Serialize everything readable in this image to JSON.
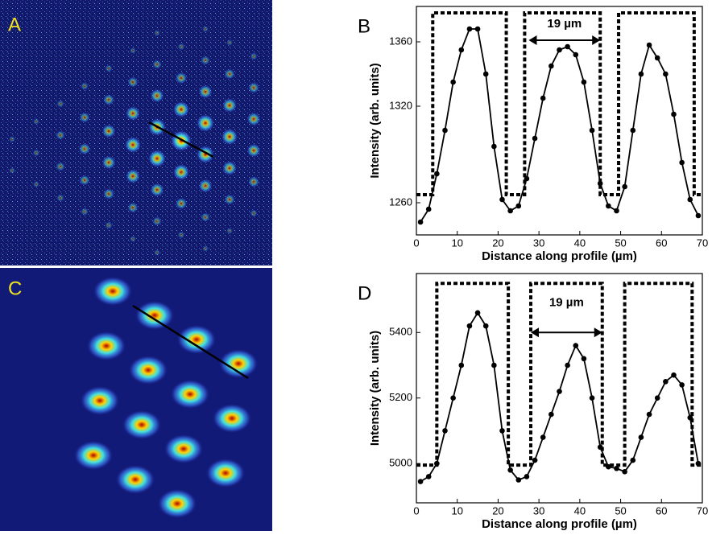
{
  "images": [
    {
      "panel": "A"
    },
    {
      "panel": "C"
    }
  ],
  "chart_data": [
    {
      "type": "line",
      "panel": "B",
      "xlabel": "Distance along profile (µm)",
      "ylabel": "Intensity (arb. units)",
      "annotation": "19 µm",
      "xlim": [
        0,
        70
      ],
      "xticks": [
        0,
        10,
        20,
        30,
        40,
        50,
        60,
        70
      ],
      "ylim": [
        1240,
        1382
      ],
      "yticks": [
        1260,
        1320,
        1360
      ],
      "series": [
        {
          "color": "#000000",
          "markers": true,
          "x": [
            1,
            3,
            5,
            7,
            9,
            11,
            13,
            15,
            17,
            19,
            21,
            23,
            25,
            27,
            29,
            31,
            33,
            35,
            37,
            39,
            41,
            43,
            45,
            47,
            49,
            51,
            53,
            55,
            57,
            59,
            61,
            63,
            65,
            67,
            69
          ],
          "values": [
            1248,
            1256,
            1278,
            1305,
            1335,
            1355,
            1368,
            1368,
            1340,
            1295,
            1262,
            1255,
            1258,
            1275,
            1300,
            1325,
            1345,
            1355,
            1357,
            1352,
            1335,
            1305,
            1272,
            1258,
            1255,
            1270,
            1305,
            1340,
            1358,
            1350,
            1340,
            1315,
            1285,
            1262,
            1252
          ]
        },
        {
          "color": "#000000",
          "dashed": true,
          "x": [
            0,
            4,
            4,
            22,
            22,
            26.5,
            26.5,
            45,
            45,
            49.5,
            49.5,
            68,
            68,
            70
          ],
          "values": [
            1265,
            1265,
            1378,
            1378,
            1265,
            1265,
            1378,
            1378,
            1265,
            1265,
            1378,
            1378,
            1265,
            1265
          ]
        }
      ]
    },
    {
      "type": "line",
      "panel": "D",
      "xlabel": "Distance along profile (µm)",
      "ylabel": "Intensity (arb. units)",
      "annotation": "19 µm",
      "xlim": [
        0,
        70
      ],
      "xticks": [
        0,
        10,
        20,
        30,
        40,
        50,
        60,
        70
      ],
      "ylim": [
        4880,
        5580
      ],
      "yticks": [
        5000,
        5200,
        5400
      ],
      "series": [
        {
          "color": "#000000",
          "markers": true,
          "x": [
            1,
            3,
            5,
            7,
            9,
            11,
            13,
            15,
            17,
            19,
            21,
            23,
            25,
            27,
            29,
            31,
            33,
            35,
            37,
            39,
            41,
            43,
            45,
            47,
            49,
            51,
            53,
            55,
            57,
            59,
            61,
            63,
            65,
            67,
            69
          ],
          "values": [
            4945,
            4960,
            5000,
            5100,
            5200,
            5300,
            5420,
            5460,
            5420,
            5300,
            5100,
            4980,
            4950,
            4960,
            5010,
            5080,
            5150,
            5220,
            5300,
            5360,
            5320,
            5200,
            5050,
            4990,
            4985,
            4975,
            5010,
            5080,
            5150,
            5200,
            5250,
            5270,
            5240,
            5140,
            5000
          ]
        },
        {
          "color": "#000000",
          "dashed": true,
          "x": [
            0,
            5,
            5,
            22.5,
            22.5,
            28,
            28,
            45.5,
            45.5,
            51,
            51,
            67.5,
            67.5,
            70
          ],
          "values": [
            4995,
            4995,
            5550,
            5550,
            4995,
            4995,
            5550,
            5550,
            4995,
            4995,
            5550,
            5550,
            4995,
            4995
          ]
        }
      ]
    }
  ]
}
